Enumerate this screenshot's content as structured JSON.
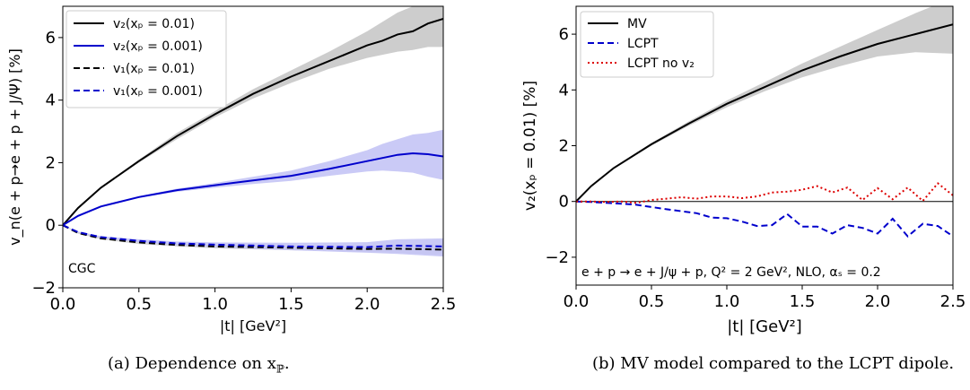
{
  "chart_data": [
    {
      "type": "line",
      "ylabel": "v_n(e + p→e + p + J/Ψ) [%]",
      "xlabel": "|t| [GeV²]",
      "xlim": [
        0,
        2.5
      ],
      "ylim": [
        -2,
        7
      ],
      "xticks": [
        "0.0",
        "0.5",
        "1.0",
        "1.5",
        "2.0",
        "2.5"
      ],
      "yticks": [
        "−2",
        "0",
        "2",
        "4",
        "6"
      ],
      "legend_position": "top-left",
      "annotation": "CGC",
      "caption": "(a) Dependence on x",
      "caption_sub": "ℙ",
      "series": [
        {
          "name": "v₂(xₚ = 0.01)",
          "color": "#000000",
          "dash": "solid",
          "band_color": "#c8c8c8",
          "x": [
            0,
            0.1,
            0.25,
            0.5,
            0.75,
            1.0,
            1.25,
            1.5,
            1.75,
            2.0,
            2.1,
            2.2,
            2.3,
            2.4,
            2.5
          ],
          "y": [
            0,
            0.55,
            1.2,
            2.05,
            2.85,
            3.55,
            4.2,
            4.75,
            5.25,
            5.75,
            5.9,
            6.1,
            6.2,
            6.45,
            6.6
          ],
          "lower": [
            0,
            0.55,
            1.18,
            2.0,
            2.75,
            3.45,
            4.05,
            4.55,
            5.0,
            5.35,
            5.45,
            5.55,
            5.6,
            5.7,
            5.7
          ],
          "upper": [
            0,
            0.56,
            1.22,
            2.1,
            2.95,
            3.65,
            4.35,
            4.95,
            5.55,
            6.2,
            6.5,
            6.8,
            7.0,
            7.2,
            7.4
          ]
        },
        {
          "name": "v₂(xₚ = 0.001)",
          "color": "#0000cc",
          "dash": "solid",
          "band_color": "#c4c4f5",
          "x": [
            0,
            0.1,
            0.25,
            0.5,
            0.75,
            1.0,
            1.25,
            1.5,
            1.75,
            2.0,
            2.1,
            2.2,
            2.3,
            2.4,
            2.5
          ],
          "y": [
            0,
            0.3,
            0.6,
            0.9,
            1.12,
            1.28,
            1.43,
            1.58,
            1.8,
            2.05,
            2.15,
            2.25,
            2.3,
            2.27,
            2.2
          ],
          "lower": [
            0,
            0.3,
            0.59,
            0.87,
            1.07,
            1.2,
            1.32,
            1.42,
            1.58,
            1.72,
            1.75,
            1.72,
            1.68,
            1.55,
            1.45
          ],
          "upper": [
            0,
            0.3,
            0.61,
            0.93,
            1.17,
            1.35,
            1.55,
            1.75,
            2.05,
            2.4,
            2.6,
            2.75,
            2.9,
            2.95,
            3.05
          ]
        },
        {
          "name": "v₁(xₚ = 0.01)",
          "color": "#000000",
          "dash": "dashed",
          "band_color": "#d2d2d2",
          "x": [
            0,
            0.1,
            0.25,
            0.5,
            0.75,
            1.0,
            1.5,
            2.0,
            2.2,
            2.5
          ],
          "y": [
            0,
            -0.25,
            -0.42,
            -0.55,
            -0.63,
            -0.68,
            -0.72,
            -0.76,
            -0.75,
            -0.78
          ],
          "lower": [
            0,
            -0.27,
            -0.45,
            -0.6,
            -0.68,
            -0.74,
            -0.8,
            -0.86,
            -0.88,
            -0.95
          ],
          "upper": [
            0,
            -0.23,
            -0.39,
            -0.5,
            -0.58,
            -0.62,
            -0.64,
            -0.66,
            -0.62,
            -0.6
          ]
        },
        {
          "name": "v₁(xₚ = 0.001)",
          "color": "#0000cc",
          "dash": "dashed",
          "band_color": "#c4c4f5",
          "x": [
            0,
            0.1,
            0.25,
            0.5,
            0.75,
            1.0,
            1.5,
            2.0,
            2.2,
            2.5
          ],
          "y": [
            0,
            -0.22,
            -0.38,
            -0.5,
            -0.58,
            -0.62,
            -0.68,
            -0.7,
            -0.65,
            -0.68
          ],
          "lower": [
            0,
            -0.24,
            -0.41,
            -0.55,
            -0.64,
            -0.7,
            -0.8,
            -0.88,
            -0.92,
            -1.0
          ],
          "upper": [
            0,
            -0.2,
            -0.35,
            -0.45,
            -0.52,
            -0.55,
            -0.56,
            -0.54,
            -0.45,
            -0.42
          ]
        }
      ]
    },
    {
      "type": "line",
      "ylabel": "v₂(xₚ = 0.01) [%]",
      "xlabel": "|t| [GeV²]",
      "xlim": [
        0,
        2.5
      ],
      "ylim": [
        -3,
        7
      ],
      "xticks": [
        "0.0",
        "0.5",
        "1.0",
        "1.5",
        "2.0",
        "2.5"
      ],
      "yticks": [
        "−2",
        "0",
        "2",
        "4",
        "6"
      ],
      "legend_position": "top-left",
      "hline_at_zero": true,
      "annotation": "e + p → e + J/ψ + p, Q² = 2 GeV², NLO, αₛ = 0.2",
      "caption": "(b) MV model compared to the LCPT dipole.",
      "series": [
        {
          "name": "MV",
          "color": "#000000",
          "dash": "solid",
          "band_color": "#c8c8c8",
          "x": [
            0,
            0.1,
            0.25,
            0.5,
            0.75,
            1.0,
            1.25,
            1.5,
            1.75,
            2.0,
            2.25,
            2.5
          ],
          "y": [
            0,
            0.55,
            1.2,
            2.05,
            2.8,
            3.5,
            4.1,
            4.7,
            5.2,
            5.65,
            6.0,
            6.35
          ],
          "lower": [
            0,
            0.54,
            1.18,
            2.0,
            2.72,
            3.38,
            3.95,
            4.45,
            4.85,
            5.2,
            5.35,
            5.3
          ],
          "upper": [
            0,
            0.56,
            1.22,
            2.1,
            2.88,
            3.62,
            4.28,
            4.95,
            5.55,
            6.15,
            6.75,
            7.3
          ]
        },
        {
          "name": "LCPT",
          "color": "#0000cc",
          "dash": "dashed",
          "x": [
            0,
            0.1,
            0.2,
            0.3,
            0.4,
            0.5,
            0.6,
            0.7,
            0.8,
            0.9,
            1.0,
            1.1,
            1.2,
            1.3,
            1.4,
            1.5,
            1.6,
            1.7,
            1.8,
            1.9,
            2.0,
            2.1,
            2.2,
            2.3,
            2.4,
            2.5
          ],
          "y": [
            0,
            -0.02,
            -0.05,
            -0.08,
            -0.12,
            -0.2,
            -0.28,
            -0.35,
            -0.42,
            -0.58,
            -0.6,
            -0.72,
            -0.88,
            -0.85,
            -0.45,
            -0.9,
            -0.9,
            -1.15,
            -0.85,
            -0.95,
            -1.15,
            -0.62,
            -1.25,
            -0.8,
            -0.88,
            -1.25
          ]
        },
        {
          "name": "LCPT no v₂",
          "color": "#dd0000",
          "dash": "dotted",
          "x": [
            0,
            0.1,
            0.2,
            0.3,
            0.4,
            0.5,
            0.6,
            0.7,
            0.8,
            0.9,
            1.0,
            1.1,
            1.2,
            1.3,
            1.4,
            1.5,
            1.6,
            1.7,
            1.8,
            1.9,
            2.0,
            2.1,
            2.2,
            2.3,
            2.4,
            2.5
          ],
          "y": [
            0,
            0.0,
            -0.02,
            0.0,
            -0.05,
            0.05,
            0.1,
            0.15,
            0.1,
            0.18,
            0.18,
            0.12,
            0.18,
            0.32,
            0.35,
            0.42,
            0.55,
            0.32,
            0.5,
            0.05,
            0.48,
            0.08,
            0.5,
            0.02,
            0.65,
            0.22
          ]
        }
      ]
    }
  ]
}
